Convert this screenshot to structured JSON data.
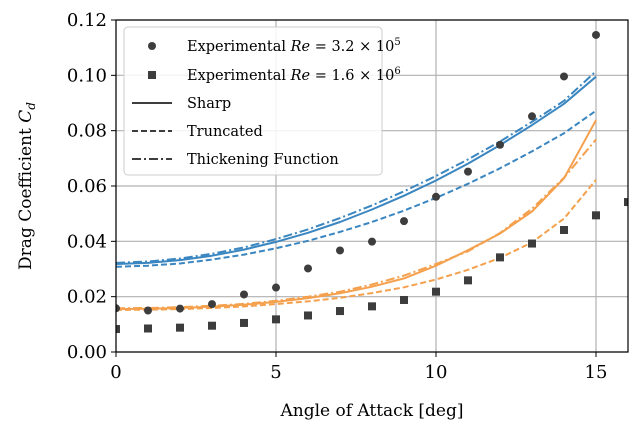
{
  "chart_data": {
    "type": "scatter",
    "xlabel": "Angle of Attack [deg]",
    "ylabel": "Drag Coefficient C_d",
    "ylabel_main": "Drag Coefficient ",
    "ylabel_symbol": "C",
    "ylabel_sub": "d",
    "xlim": [
      0,
      16
    ],
    "ylim": [
      0,
      0.12
    ],
    "x_ticks": [
      0,
      5,
      10,
      15
    ],
    "x_tick_labels": [
      "0",
      "5",
      "10",
      "15"
    ],
    "y_ticks": [
      0,
      0.02,
      0.04,
      0.06,
      0.08,
      0.1,
      0.12
    ],
    "y_tick_labels": [
      "0.00",
      "0.02",
      "0.04",
      "0.06",
      "0.08",
      "0.10",
      "0.12"
    ],
    "grid": true,
    "legend_position": "top-left",
    "colors": {
      "blue": "#3a86c0",
      "orange": "#f5a04d",
      "markers": "#3d3d3d"
    },
    "legend": [
      {
        "prefix": "Experimental ",
        "re_value": "3.2",
        "re_exp": "5",
        "marker": "circle"
      },
      {
        "prefix": "Experimental ",
        "re_value": "1.6",
        "re_exp": "6",
        "marker": "square"
      },
      {
        "label": "Sharp",
        "dash": "solid"
      },
      {
        "label": "Truncated",
        "dash": "dashed"
      },
      {
        "label": "Thickening Function",
        "dash": "dashdot"
      }
    ],
    "scatter_series": [
      {
        "marker": "circle",
        "color": "#3d3d3d",
        "x": [
          0,
          1,
          2,
          3,
          4,
          5,
          6,
          7,
          8,
          9,
          10,
          11,
          12,
          13,
          14,
          15
        ],
        "y": [
          0.0158,
          0.015,
          0.0157,
          0.0173,
          0.0208,
          0.0233,
          0.0302,
          0.0367,
          0.0399,
          0.0473,
          0.0561,
          0.0652,
          0.0749,
          0.0852,
          0.0996,
          0.1146
        ]
      },
      {
        "marker": "square",
        "color": "#3d3d3d",
        "x": [
          0,
          1,
          2,
          3,
          4,
          5,
          6,
          7,
          8,
          9,
          10,
          11,
          12,
          13,
          14,
          15,
          16
        ],
        "y": [
          0.0083,
          0.0085,
          0.0088,
          0.0095,
          0.0105,
          0.0118,
          0.0132,
          0.0148,
          0.0165,
          0.0188,
          0.0218,
          0.0259,
          0.0342,
          0.0392,
          0.0441,
          0.0494,
          0.0542
        ]
      }
    ],
    "line_series": [
      {
        "color": "#3a86c0",
        "dash": "solid",
        "x": [
          0,
          1,
          2,
          3,
          4,
          5,
          6,
          7,
          8,
          9,
          10,
          11,
          12,
          13,
          14,
          15
        ],
        "y": [
          0.0318,
          0.0322,
          0.0332,
          0.0348,
          0.037,
          0.0398,
          0.0431,
          0.047,
          0.0515,
          0.0565,
          0.062,
          0.0681,
          0.0748,
          0.082,
          0.0897,
          0.0995
        ]
      },
      {
        "color": "#3a86c0",
        "dash": "dashed",
        "x": [
          0,
          1,
          2,
          3,
          4,
          5,
          6,
          7,
          8,
          9,
          10,
          11,
          12,
          13,
          14,
          15
        ],
        "y": [
          0.0308,
          0.0312,
          0.032,
          0.0334,
          0.0352,
          0.0375,
          0.0402,
          0.0434,
          0.047,
          0.0511,
          0.0557,
          0.0608,
          0.0664,
          0.0725,
          0.0791,
          0.0872
        ]
      },
      {
        "color": "#3a86c0",
        "dash": "dashdot",
        "x": [
          0,
          1,
          2,
          3,
          4,
          5,
          6,
          7,
          8,
          9,
          10,
          11,
          12,
          13,
          14,
          15
        ],
        "y": [
          0.0322,
          0.0327,
          0.0338,
          0.0355,
          0.0378,
          0.0408,
          0.0443,
          0.0484,
          0.053,
          0.0581,
          0.0636,
          0.0696,
          0.0761,
          0.0832,
          0.0908,
          0.1015
        ]
      },
      {
        "color": "#f5a04d",
        "dash": "solid",
        "x": [
          0,
          1,
          2,
          3,
          4,
          5,
          6,
          7,
          8,
          9,
          10,
          11,
          12,
          13,
          14,
          15
        ],
        "y": [
          0.0155,
          0.0156,
          0.0159,
          0.0164,
          0.0171,
          0.0181,
          0.0195,
          0.0212,
          0.0236,
          0.0266,
          0.0312,
          0.0368,
          0.0428,
          0.0508,
          0.0628,
          0.0838
        ]
      },
      {
        "color": "#f5a04d",
        "dash": "dashed",
        "x": [
          0,
          1,
          2,
          3,
          4,
          5,
          6,
          7,
          8,
          9,
          10,
          11,
          12,
          13,
          14,
          15
        ],
        "y": [
          0.0152,
          0.0153,
          0.0155,
          0.0159,
          0.0165,
          0.0173,
          0.0183,
          0.0196,
          0.0213,
          0.0234,
          0.0262,
          0.0297,
          0.034,
          0.0396,
          0.0482,
          0.0622
        ]
      },
      {
        "color": "#f5a04d",
        "dash": "dashdot",
        "x": [
          0,
          1,
          2,
          3,
          4,
          5,
          6,
          7,
          8,
          9,
          10,
          11,
          12,
          13,
          14,
          15
        ],
        "y": [
          0.0158,
          0.0159,
          0.0162,
          0.0167,
          0.0174,
          0.0185,
          0.02,
          0.0218,
          0.0244,
          0.0276,
          0.0318,
          0.0364,
          0.043,
          0.0518,
          0.063,
          0.0768
        ]
      }
    ]
  }
}
